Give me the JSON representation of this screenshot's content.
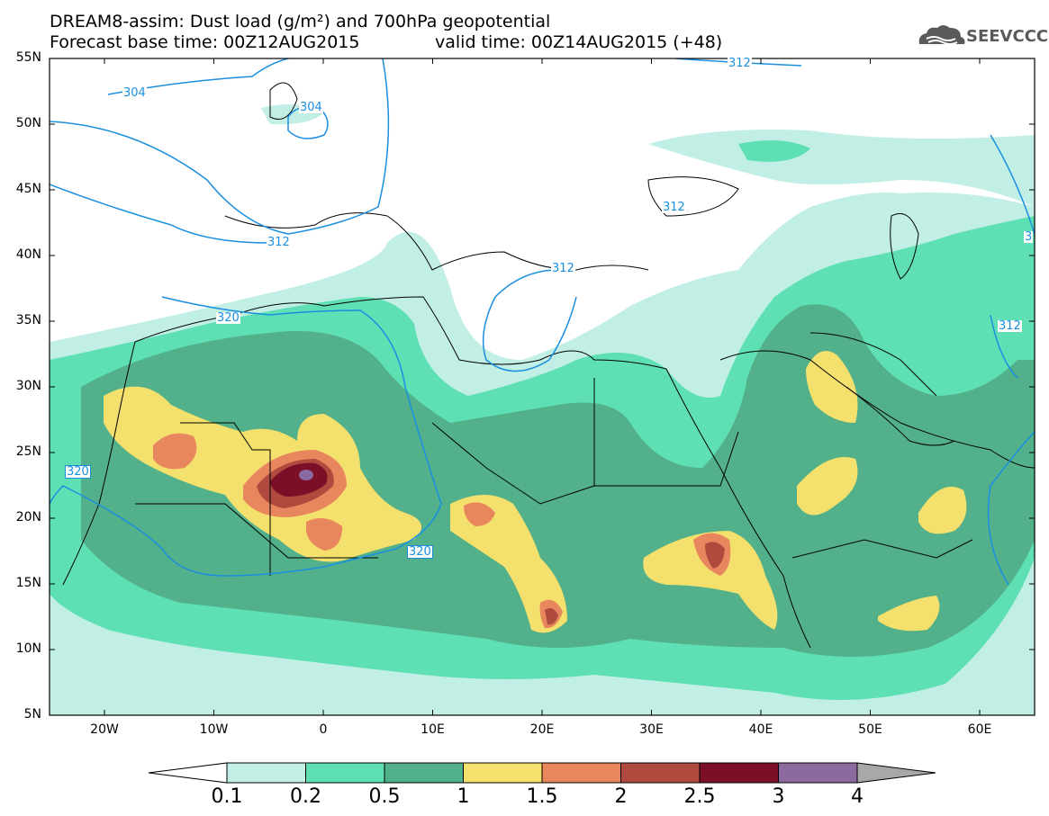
{
  "header": {
    "title_line1": "DREAM8-assim: Dust load (g/m²) and 700hPa geopotential",
    "title_line2": "Forecast base time: 00Z12AUG2015",
    "title_line2b": "valid time: 00Z14AUG2015 (+48)",
    "logo_text": "SEEVCCC"
  },
  "map": {
    "lat_labels": [
      "55N",
      "50N",
      "45N",
      "40N",
      "35N",
      "30N",
      "25N",
      "20N",
      "15N",
      "10N",
      "5N"
    ],
    "lon_labels": [
      "20W",
      "10W",
      "0",
      "10E",
      "20E",
      "30E",
      "40E",
      "50E",
      "60E"
    ],
    "contour_labels": [
      "304",
      "304",
      "312",
      "312",
      "312",
      "312",
      "312",
      "320",
      "320",
      "320",
      "3"
    ],
    "field_colors": {
      "bin1": "#c1efe6",
      "bin2": "#5ee0b4",
      "bin3": "#52b08a",
      "bin4": "#f4e06c",
      "bin5": "#e8865e",
      "bin6": "#ae4a3e",
      "bin7": "#7c0e28",
      "bin8": "#8c6aa0"
    },
    "contour_color": "#1a8fe0"
  },
  "colorbar": {
    "labels": [
      "0.1",
      "0.2",
      "0.5",
      "1",
      "1.5",
      "2",
      "2.5",
      "3",
      "4"
    ],
    "colors": [
      "#c1efe6",
      "#5ee0b4",
      "#52b08a",
      "#f4e06c",
      "#e8865e",
      "#ae4a3e",
      "#7c0e28",
      "#8c6aa0"
    ]
  }
}
